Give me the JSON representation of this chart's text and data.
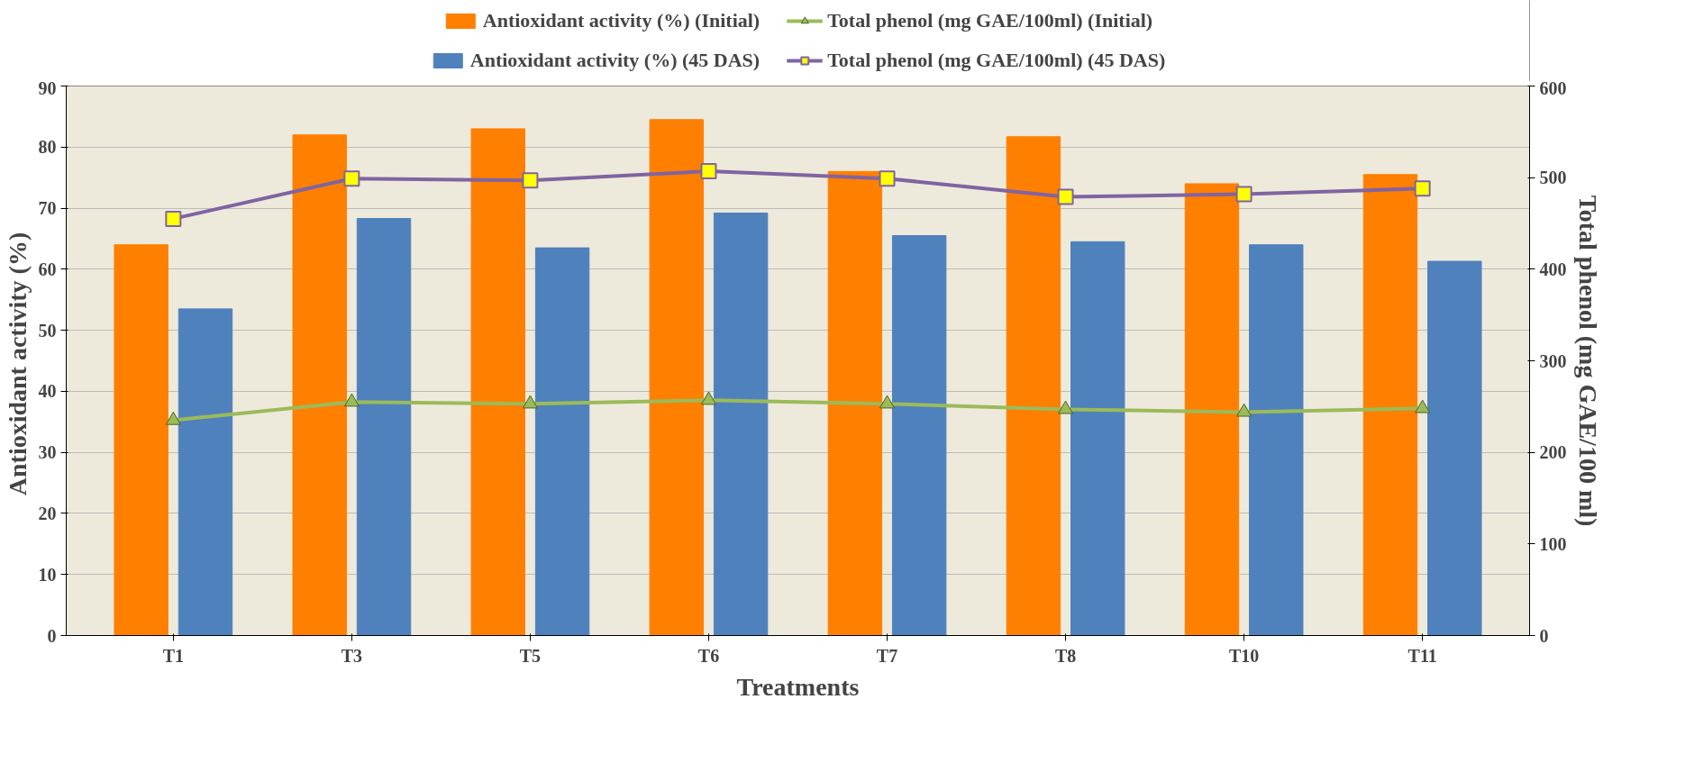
{
  "chart_data": {
    "type": "bar",
    "xlabel": "Treatments",
    "ylabel": "Antioxidant  activity (%)",
    "y2label": "Total phenol (mg GAE/100 ml)",
    "categories": [
      "T1",
      "T3",
      "T5",
      "T6",
      "T7",
      "T8",
      "T10",
      "T11"
    ],
    "series": [
      {
        "name": "Antioxidant activity (%) (Initial)",
        "color": "#ff7f00",
        "values": [
          64,
          82,
          83,
          84.5,
          76,
          81.7,
          74,
          75.5
        ]
      },
      {
        "name": "Antioxidant activity (%) (45 DAS)",
        "color": "#4f81bd",
        "values": [
          53.5,
          68.3,
          63.5,
          69.2,
          65.5,
          64.5,
          64,
          61.3
        ]
      },
      {
        "name": "Total phenol (mg GAE/100ml) (Initial)",
        "type": "line",
        "axis": "y2",
        "marker": "triangle",
        "color": "#9bbb59",
        "values": [
          235,
          255,
          253,
          257,
          253,
          247,
          244,
          248
        ]
      },
      {
        "name": "Total phenol (mg GAE/100ml) (45 DAS)",
        "type": "line",
        "axis": "y2",
        "marker": "square",
        "color": "#8064a2",
        "values": [
          455,
          499,
          497,
          507,
          499,
          479,
          482,
          488
        ]
      }
    ],
    "ylim": [
      0,
      90
    ],
    "yticks": [
      0,
      10,
      20,
      30,
      40,
      50,
      60,
      70,
      80,
      90
    ],
    "y2lim": [
      0,
      600
    ],
    "y2ticks": [
      0,
      100,
      200,
      300,
      400,
      500,
      600
    ],
    "grid": "y",
    "legend": "top"
  }
}
